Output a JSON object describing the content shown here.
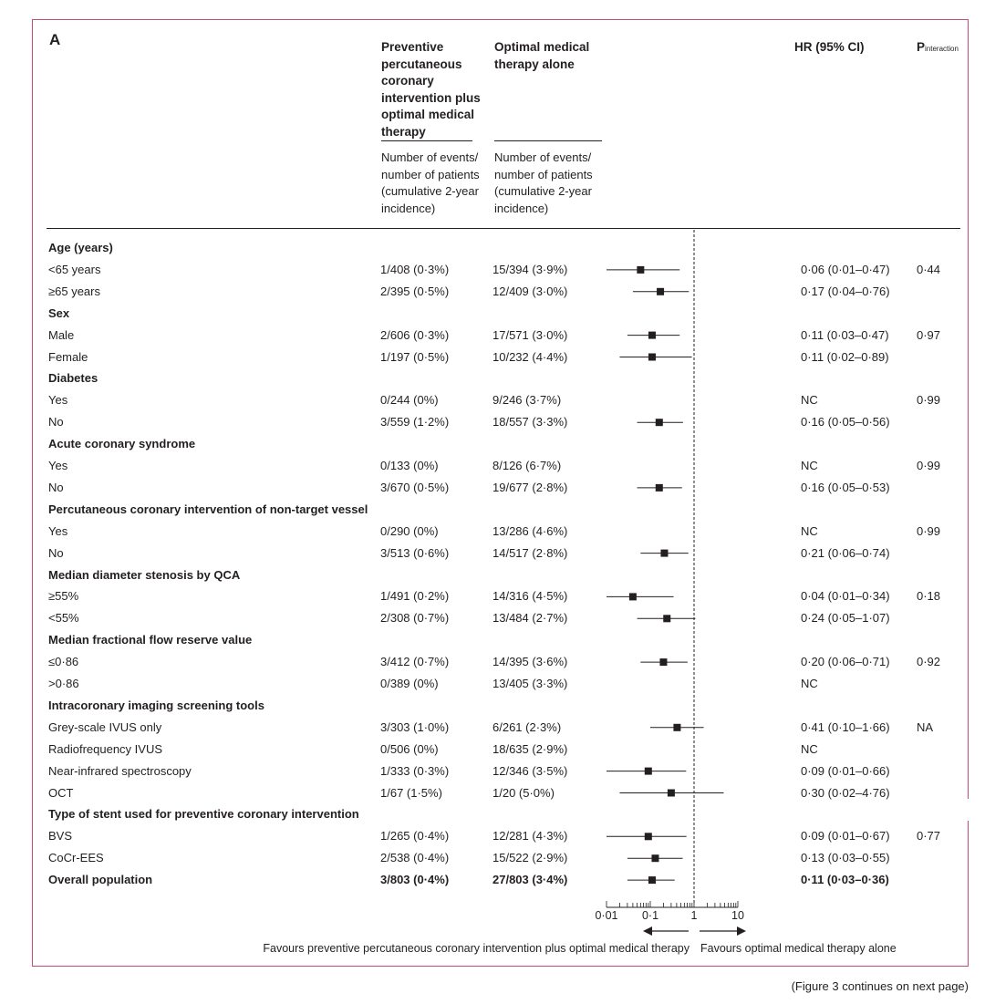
{
  "panel_label": "A",
  "headers": {
    "ppci_group": "Preventive percutaneous coronary intervention plus optimal medical therapy",
    "omt_group": "Optimal medical therapy alone",
    "ppci_sub": "Number of events/ number of patients (cumulative 2-year incidence)",
    "omt_sub": "Number of events/ number of patients (cumulative 2-year incidence)",
    "hr": "HR (95% CI)",
    "p_main": "P",
    "p_sub": "interaction"
  },
  "rows": [
    {
      "kind": "group",
      "label": "Age (years)"
    },
    {
      "kind": "data",
      "label": "<65 years",
      "ppci": "1/408 (0·3%)",
      "omt": "15/394 (3·9%)",
      "hr_text": "0·06 (0·01–0·47)",
      "p": "0·44"
    },
    {
      "kind": "data",
      "label": "≥65 years",
      "ppci": "2/395 (0·5%)",
      "omt": "12/409 (3·0%)",
      "hr_text": "0·17 (0·04–0·76)",
      "p": ""
    },
    {
      "kind": "group",
      "label": "Sex"
    },
    {
      "kind": "data",
      "label": "Male",
      "ppci": "2/606 (0·3%)",
      "omt": "17/571 (3·0%)",
      "hr_text": "0·11 (0·03–0·47)",
      "p": "0·97"
    },
    {
      "kind": "data",
      "label": "Female",
      "ppci": "1/197 (0·5%)",
      "omt": "10/232 (4·4%)",
      "hr_text": "0·11 (0·02–0·89)",
      "p": ""
    },
    {
      "kind": "group",
      "label": "Diabetes"
    },
    {
      "kind": "data",
      "label": "Yes",
      "ppci": "0/244 (0%)",
      "omt": "9/246 (3·7%)",
      "hr_text": "NC",
      "p": "0·99"
    },
    {
      "kind": "data",
      "label": "No",
      "ppci": "3/559 (1·2%)",
      "omt": "18/557 (3·3%)",
      "hr_text": "0·16 (0·05–0·56)",
      "p": ""
    },
    {
      "kind": "group",
      "label": "Acute coronary syndrome"
    },
    {
      "kind": "data",
      "label": "Yes",
      "ppci": "0/133 (0%)",
      "omt": "8/126 (6·7%)",
      "hr_text": "NC",
      "p": "0·99"
    },
    {
      "kind": "data",
      "label": "No",
      "ppci": "3/670 (0·5%)",
      "omt": "19/677 (2·8%)",
      "hr_text": "0·16 (0·05–0·53)",
      "p": ""
    },
    {
      "kind": "group",
      "label": "Percutaneous coronary intervention of non-target vessel"
    },
    {
      "kind": "data",
      "label": "Yes",
      "ppci": "0/290 (0%)",
      "omt": "13/286 (4·6%)",
      "hr_text": "NC",
      "p": "0·99"
    },
    {
      "kind": "data",
      "label": "No",
      "ppci": "3/513 (0·6%)",
      "omt": "14/517 (2·8%)",
      "hr_text": "0·21 (0·06–0·74)",
      "p": ""
    },
    {
      "kind": "group",
      "label": "Median diameter stenosis by QCA"
    },
    {
      "kind": "data",
      "label": "≥55%",
      "ppci": "1/491 (0·2%)",
      "omt": "14/316 (4·5%)",
      "hr_text": "0·04 (0·01–0·34)",
      "p": "0·18"
    },
    {
      "kind": "data",
      "label": "<55%",
      "ppci": "2/308 (0·7%)",
      "omt": "13/484 (2·7%)",
      "hr_text": "0·24 (0·05–1·07)",
      "p": ""
    },
    {
      "kind": "group",
      "label": "Median fractional flow reserve value"
    },
    {
      "kind": "data",
      "label": "≤0·86",
      "ppci": "3/412 (0·7%)",
      "omt": "14/395 (3·6%)",
      "hr_text": "0·20 (0·06–0·71)",
      "p": "0·92"
    },
    {
      "kind": "data",
      "label": ">0·86",
      "ppci": "0/389 (0%)",
      "omt": "13/405 (3·3%)",
      "hr_text": "NC",
      "p": ""
    },
    {
      "kind": "group",
      "label": "Intracoronary imaging screening tools"
    },
    {
      "kind": "data",
      "label": "Grey-scale IVUS only",
      "ppci": "3/303 (1·0%)",
      "omt": "6/261 (2·3%)",
      "hr_text": "0·41 (0·10–1·66)",
      "p": "NA"
    },
    {
      "kind": "data",
      "label": "Radiofrequency IVUS",
      "ppci": "0/506 (0%)",
      "omt": "18/635 (2·9%)",
      "hr_text": "NC",
      "p": ""
    },
    {
      "kind": "data",
      "label": "Near-infrared spectroscopy",
      "ppci": "1/333 (0·3%)",
      "omt": "12/346 (3·5%)",
      "hr_text": "0·09 (0·01–0·66)",
      "p": ""
    },
    {
      "kind": "data",
      "label": "OCT",
      "ppci": "1/67 (1·5%)",
      "omt": "1/20 (5·0%)",
      "hr_text": "0·30 (0·02–4·76)",
      "p": ""
    },
    {
      "kind": "group",
      "label": "Type of stent used for preventive coronary intervention"
    },
    {
      "kind": "data",
      "label": "BVS",
      "ppci": "1/265 (0·4%)",
      "omt": "12/281 (4·3%)",
      "hr_text": "0·09 (0·01–0·67)",
      "p": "0·77"
    },
    {
      "kind": "data",
      "label": "CoCr-EES",
      "ppci": "2/538 (0·4%)",
      "omt": "15/522 (2·9%)",
      "hr_text": "0·13 (0·03–0·55)",
      "p": ""
    },
    {
      "kind": "overall",
      "label": "Overall population",
      "ppci": "3/803 (0·4%)",
      "omt": "27/803 (3·4%)",
      "hr_text": "0·11 (0·03–0·36)",
      "p": ""
    }
  ],
  "chart_data": {
    "type": "forest",
    "x_scale": "log",
    "xlim": [
      0.01,
      10
    ],
    "reference_line": 1,
    "tick_labels": [
      "0·01",
      "0·1",
      "1",
      "10"
    ],
    "favours_left": "Favours preventive percutaneous coronary intervention plus optimal medical therapy",
    "favours_right": "Favours optimal medical therapy alone",
    "estimates": [
      {
        "row": 1,
        "hr": 0.06,
        "lo": 0.01,
        "hi": 0.47
      },
      {
        "row": 2,
        "hr": 0.17,
        "lo": 0.04,
        "hi": 0.76
      },
      {
        "row": 4,
        "hr": 0.11,
        "lo": 0.03,
        "hi": 0.47
      },
      {
        "row": 5,
        "hr": 0.11,
        "lo": 0.02,
        "hi": 0.89
      },
      {
        "row": 8,
        "hr": 0.16,
        "lo": 0.05,
        "hi": 0.56
      },
      {
        "row": 11,
        "hr": 0.16,
        "lo": 0.05,
        "hi": 0.53
      },
      {
        "row": 14,
        "hr": 0.21,
        "lo": 0.06,
        "hi": 0.74
      },
      {
        "row": 16,
        "hr": 0.04,
        "lo": 0.01,
        "hi": 0.34
      },
      {
        "row": 17,
        "hr": 0.24,
        "lo": 0.05,
        "hi": 1.07
      },
      {
        "row": 19,
        "hr": 0.2,
        "lo": 0.06,
        "hi": 0.71
      },
      {
        "row": 22,
        "hr": 0.41,
        "lo": 0.1,
        "hi": 1.66
      },
      {
        "row": 24,
        "hr": 0.09,
        "lo": 0.01,
        "hi": 0.66
      },
      {
        "row": 25,
        "hr": 0.3,
        "lo": 0.02,
        "hi": 4.76
      },
      {
        "row": 27,
        "hr": 0.09,
        "lo": 0.01,
        "hi": 0.67
      },
      {
        "row": 28,
        "hr": 0.13,
        "lo": 0.03,
        "hi": 0.55
      },
      {
        "row": 29,
        "hr": 0.11,
        "lo": 0.03,
        "hi": 0.36
      }
    ]
  },
  "footnote": "(Figure 3 continues on next page)"
}
